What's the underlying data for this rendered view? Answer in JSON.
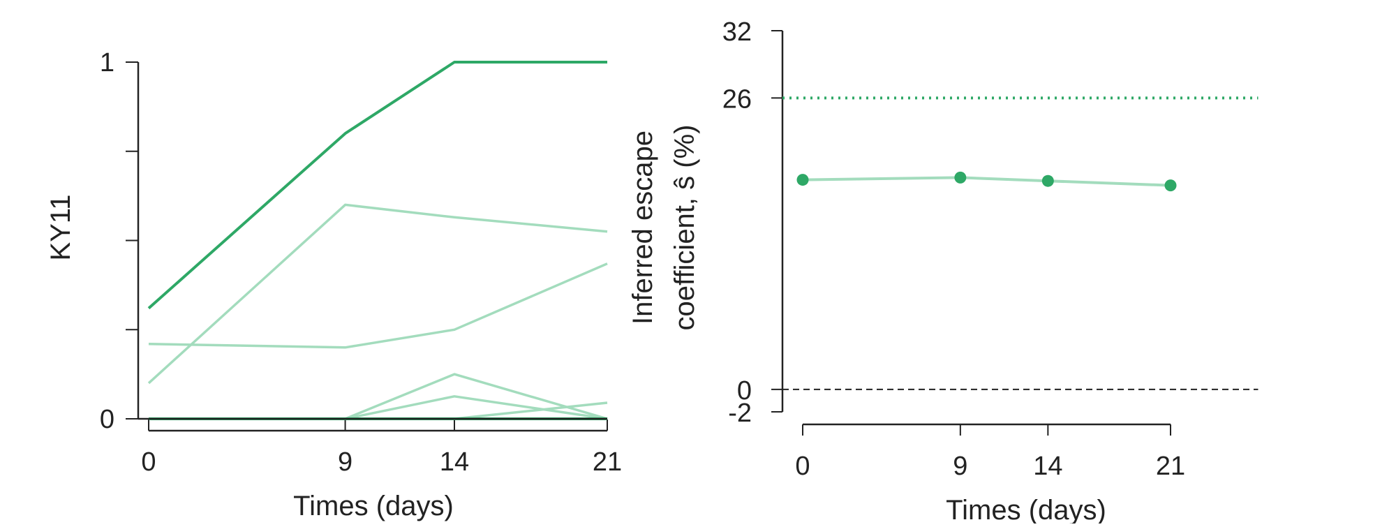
{
  "chart_data": [
    {
      "type": "line",
      "ylabel": "KY11",
      "xlabel": "Times (days)",
      "x": [
        0,
        9,
        14,
        21
      ],
      "xlim": [
        0,
        21
      ],
      "ylim": [
        0,
        1
      ],
      "x_ticks": [
        "0",
        "9",
        "14",
        "21"
      ],
      "y_tick_values": [
        0,
        0.25,
        0.5,
        0.75,
        1
      ],
      "y_tick_labels": [
        "0",
        "",
        "",
        "",
        "1"
      ],
      "grid": false,
      "series": [
        {
          "values": [
            0.31,
            0.8,
            1.0,
            1.0
          ],
          "style": "dark"
        },
        {
          "values": [
            0.1,
            0.6,
            0.565,
            0.525
          ],
          "style": "light"
        },
        {
          "values": [
            0.21,
            0.2,
            0.25,
            0.435
          ],
          "style": "light"
        },
        {
          "values": [
            0.0,
            0.0,
            0.125,
            0.0
          ],
          "style": "light"
        },
        {
          "values": [
            0.0,
            0.0,
            0.063,
            0.0
          ],
          "style": "light"
        },
        {
          "values": [
            0.0,
            0.0,
            0.0,
            0.045
          ],
          "style": "light"
        },
        {
          "values": [
            0.0,
            0.0,
            0.0,
            0.0
          ],
          "style": "dark"
        }
      ],
      "colors": {
        "dark": "#2ea866",
        "light": "#a3dcbd",
        "axis": "#222222"
      }
    },
    {
      "type": "line",
      "ylabel_lines": [
        "Inferred escape",
        "coefficient, ŝ (%)"
      ],
      "xlabel": "Times (days)",
      "x": [
        0,
        9,
        14,
        21
      ],
      "xlim": [
        0,
        26
      ],
      "ylim": [
        -2,
        32
      ],
      "x_ticks": [
        "0",
        "9",
        "14",
        "21"
      ],
      "y_tick_values": [
        -2,
        0,
        26,
        32
      ],
      "y_tick_labels": [
        "-2",
        "0",
        "26",
        "32"
      ],
      "grid": false,
      "series": [
        {
          "values": [
            18.7,
            18.9,
            18.6,
            18.2
          ]
        }
      ],
      "reference_lines": [
        {
          "y": 26,
          "style": "dotted",
          "color": "#2ea866"
        },
        {
          "y": 0,
          "style": "dashed",
          "color": "#222222"
        }
      ],
      "colors": {
        "line": "#a3dcbd",
        "point": "#2ea866",
        "axis": "#222222"
      }
    }
  ]
}
